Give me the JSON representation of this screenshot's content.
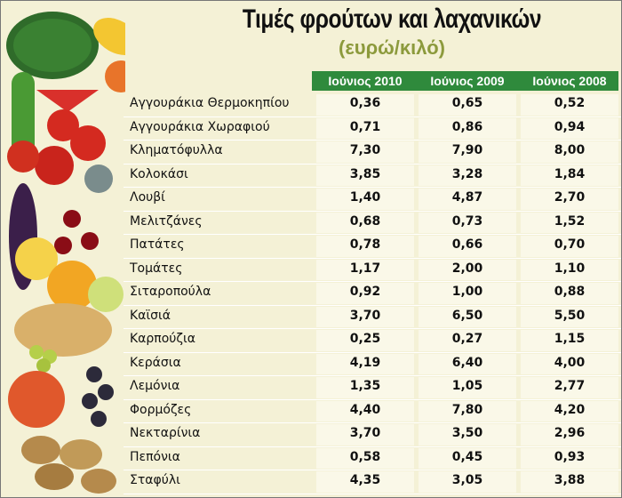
{
  "header": {
    "title": "Τιμές φρούτων και λαχανικών",
    "subtitle": "(ευρώ/κιλό)"
  },
  "table": {
    "columns": [
      "Ιούνιος 2010",
      "Ιούνιος 2009",
      "Ιούνιος 2008"
    ],
    "rows": [
      [
        "Αγγουράκια Θερμοκηπίου",
        "0,36",
        "0,65",
        "0,52"
      ],
      [
        "Αγγουράκια Χωραφιού",
        "0,71",
        "0,86",
        "0,94"
      ],
      [
        "Κληματόφυλλα",
        "7,30",
        "7,90",
        "8,00"
      ],
      [
        "Κολοκάσι",
        "3,85",
        "3,28",
        "1,84"
      ],
      [
        "Λουβί",
        "1,40",
        "4,87",
        "2,70"
      ],
      [
        "Μελιτζάνες",
        "0,68",
        "0,73",
        "1,52"
      ],
      [
        "Πατάτες",
        "0,78",
        "0,66",
        "0,70"
      ],
      [
        "Τομάτες",
        "1,17",
        "2,00",
        "1,10"
      ],
      [
        "Σιταροπούλα",
        "0,92",
        "1,00",
        "0,88"
      ],
      [
        "Καϊσιά",
        "3,70",
        "6,50",
        "5,50"
      ],
      [
        "Καρπούζια",
        "0,25",
        "0,27",
        "1,15"
      ],
      [
        "Κεράσια",
        "4,19",
        "6,40",
        "4,00"
      ],
      [
        "Λεμόνια",
        "1,35",
        "1,05",
        "2,77"
      ],
      [
        "Φορμόζες",
        "4,40",
        "7,80",
        "4,20"
      ],
      [
        "Νεκταρίνια",
        "3,70",
        "3,50",
        "2,96"
      ],
      [
        "Πεπόνια",
        "0,58",
        "0,45",
        "0,93"
      ],
      [
        "Σταφύλι",
        "4,35",
        "3,05",
        "3,88"
      ]
    ]
  }
}
